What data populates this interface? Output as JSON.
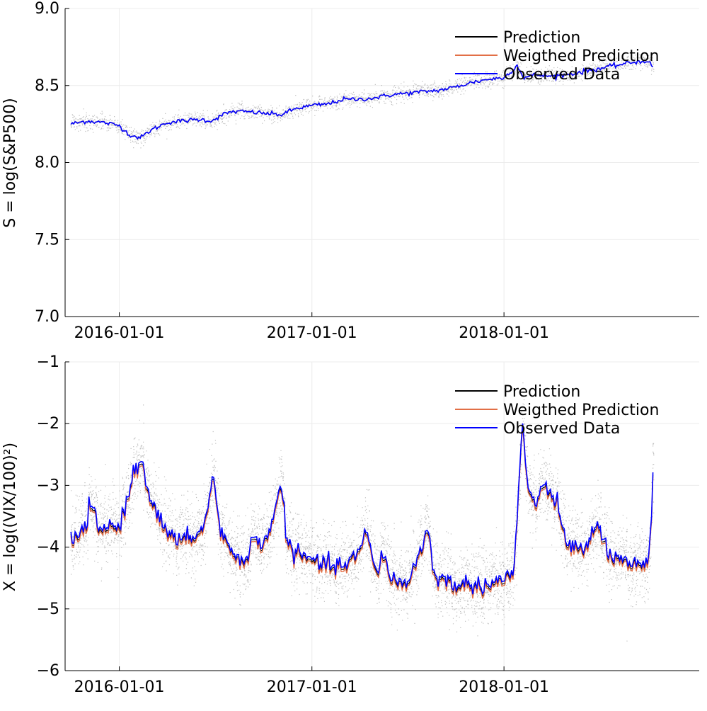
{
  "colors": {
    "prediction": "#000000",
    "weighted": "#e26f46",
    "observed": "#0000ff",
    "cloud": "#8a8a8a",
    "grid": "#ececec",
    "axis": "#000000"
  },
  "chart_data": [
    {
      "type": "line",
      "ylabel": "S = log(S&P500)",
      "ylim": [
        7.0,
        9.0
      ],
      "yticks": [
        "7.0",
        "7.5",
        "8.0",
        "8.5",
        "9.0"
      ],
      "ytick_values": [
        7.0,
        7.5,
        8.0,
        8.5,
        9.0
      ],
      "xticks": [
        "2016-01-01",
        "2017-01-01",
        "2018-01-01"
      ],
      "xtick_values": [
        "2016-01-01",
        "2017-01-01",
        "2018-01-01"
      ],
      "xlim": [
        "2015-09-20",
        "2019-01-07"
      ],
      "grid": true,
      "legend_position": "top-right",
      "legend": [
        "Prediction",
        "Weigthed Prediction",
        "Observed Data"
      ],
      "series": [
        {
          "name": "Observed Data",
          "x": [
            "2015-10-01",
            "2015-11-01",
            "2015-12-01",
            "2016-01-01",
            "2016-01-20",
            "2016-02-10",
            "2016-03-01",
            "2016-04-01",
            "2016-05-01",
            "2016-06-01",
            "2016-06-24",
            "2016-07-15",
            "2016-08-01",
            "2016-09-01",
            "2016-10-01",
            "2016-11-04",
            "2016-12-01",
            "2017-01-01",
            "2017-02-01",
            "2017-03-01",
            "2017-04-01",
            "2017-05-01",
            "2017-06-01",
            "2017-07-01",
            "2017-08-01",
            "2017-09-01",
            "2017-10-01",
            "2017-11-01",
            "2017-12-01",
            "2018-01-01",
            "2018-01-26",
            "2018-02-08",
            "2018-03-01",
            "2018-04-01",
            "2018-05-01",
            "2018-06-01",
            "2018-07-01",
            "2018-08-01",
            "2018-09-01",
            "2018-10-01",
            "2018-10-11"
          ],
          "values": [
            8.25,
            8.27,
            8.26,
            8.24,
            8.18,
            8.16,
            8.21,
            8.26,
            8.27,
            8.28,
            8.27,
            8.31,
            8.33,
            8.33,
            8.32,
            8.31,
            8.35,
            8.37,
            8.38,
            8.41,
            8.41,
            8.42,
            8.44,
            8.45,
            8.46,
            8.47,
            8.49,
            8.52,
            8.54,
            8.55,
            8.63,
            8.55,
            8.57,
            8.56,
            8.57,
            8.59,
            8.61,
            8.63,
            8.65,
            8.66,
            8.62
          ]
        }
      ],
      "point_cloud": "simulated prediction paths"
    },
    {
      "type": "line",
      "ylabel": "X = log((VIX/100)²)",
      "ylim": [
        -6,
        -1
      ],
      "yticks": [
        "−6",
        "−5",
        "−4",
        "−3",
        "−2",
        "−1"
      ],
      "ytick_values": [
        -6,
        -5,
        -4,
        -3,
        -2,
        -1
      ],
      "xticks": [
        "2016-01-01",
        "2017-01-01",
        "2018-01-01"
      ],
      "xtick_values": [
        "2016-01-01",
        "2017-01-01",
        "2018-01-01"
      ],
      "xlim": [
        "2015-09-20",
        "2019-01-07"
      ],
      "grid": true,
      "legend_position": "top-right",
      "legend": [
        "Prediction",
        "Weigthed Prediction",
        "Observed Data"
      ],
      "series": [
        {
          "name": "Observed Data",
          "x": [
            "2015-10-01",
            "2015-10-20",
            "2015-11-10",
            "2015-11-25",
            "2015-12-15",
            "2016-01-01",
            "2016-01-15",
            "2016-02-01",
            "2016-02-12",
            "2016-03-01",
            "2016-04-01",
            "2016-05-01",
            "2016-06-10",
            "2016-06-27",
            "2016-07-10",
            "2016-08-01",
            "2016-09-01",
            "2016-09-12",
            "2016-10-01",
            "2016-11-04",
            "2016-11-15",
            "2016-12-01",
            "2017-01-01",
            "2017-02-01",
            "2017-03-01",
            "2017-04-01",
            "2017-04-14",
            "2017-05-01",
            "2017-05-17",
            "2017-06-01",
            "2017-07-01",
            "2017-08-10",
            "2017-08-20",
            "2017-09-01",
            "2017-10-01",
            "2017-11-01",
            "2017-12-01",
            "2018-01-01",
            "2018-01-20",
            "2018-02-05",
            "2018-02-15",
            "2018-03-01",
            "2018-03-23",
            "2018-04-10",
            "2018-05-01",
            "2018-06-01",
            "2018-06-25",
            "2018-07-15",
            "2018-08-01",
            "2018-09-01",
            "2018-10-01",
            "2018-10-08",
            "2018-10-11"
          ],
          "values": [
            -3.9,
            -3.8,
            -3.3,
            -3.8,
            -3.6,
            -3.7,
            -3.2,
            -2.7,
            -2.6,
            -3.2,
            -3.8,
            -3.9,
            -3.7,
            -2.8,
            -3.7,
            -4.1,
            -4.2,
            -3.8,
            -4.0,
            -3.0,
            -3.9,
            -4.1,
            -4.2,
            -4.3,
            -4.3,
            -4.1,
            -3.7,
            -4.4,
            -4.1,
            -4.5,
            -4.6,
            -3.7,
            -4.4,
            -4.5,
            -4.6,
            -4.6,
            -4.6,
            -4.5,
            -4.4,
            -2.0,
            -3.0,
            -3.3,
            -3.0,
            -3.3,
            -3.9,
            -4.1,
            -3.6,
            -4.0,
            -4.2,
            -4.3,
            -4.3,
            -3.7,
            -2.8
          ]
        }
      ],
      "point_cloud": "simulated prediction paths"
    }
  ]
}
